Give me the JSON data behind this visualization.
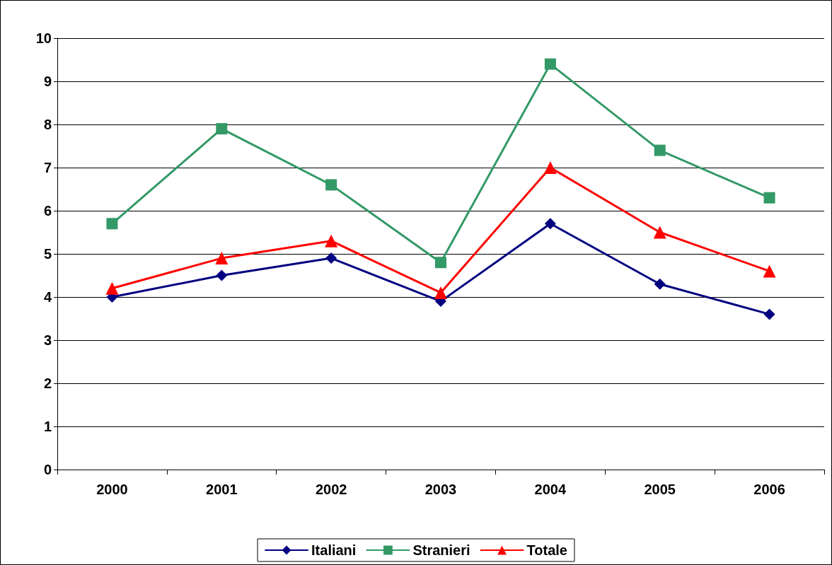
{
  "chart_data": {
    "type": "line",
    "categories": [
      "2000",
      "2001",
      "2002",
      "2003",
      "2004",
      "2005",
      "2006"
    ],
    "series": [
      {
        "name": "Italiani",
        "color": "#000080",
        "marker": "diamond",
        "values": [
          4.0,
          4.5,
          4.9,
          3.9,
          5.7,
          4.3,
          3.6
        ]
      },
      {
        "name": "Stranieri",
        "color": "#339966",
        "marker": "square",
        "values": [
          5.7,
          7.9,
          6.6,
          4.8,
          9.4,
          7.4,
          6.3
        ]
      },
      {
        "name": "Totale",
        "color": "#ff0000",
        "marker": "triangle",
        "values": [
          4.2,
          4.9,
          5.3,
          4.1,
          7.0,
          5.5,
          4.6
        ]
      }
    ],
    "ylim": [
      0,
      10
    ],
    "yticks": [
      0,
      1,
      2,
      3,
      4,
      5,
      6,
      7,
      8,
      9,
      10
    ],
    "grid": "y",
    "legend": "bottom",
    "line_style": "solid"
  }
}
